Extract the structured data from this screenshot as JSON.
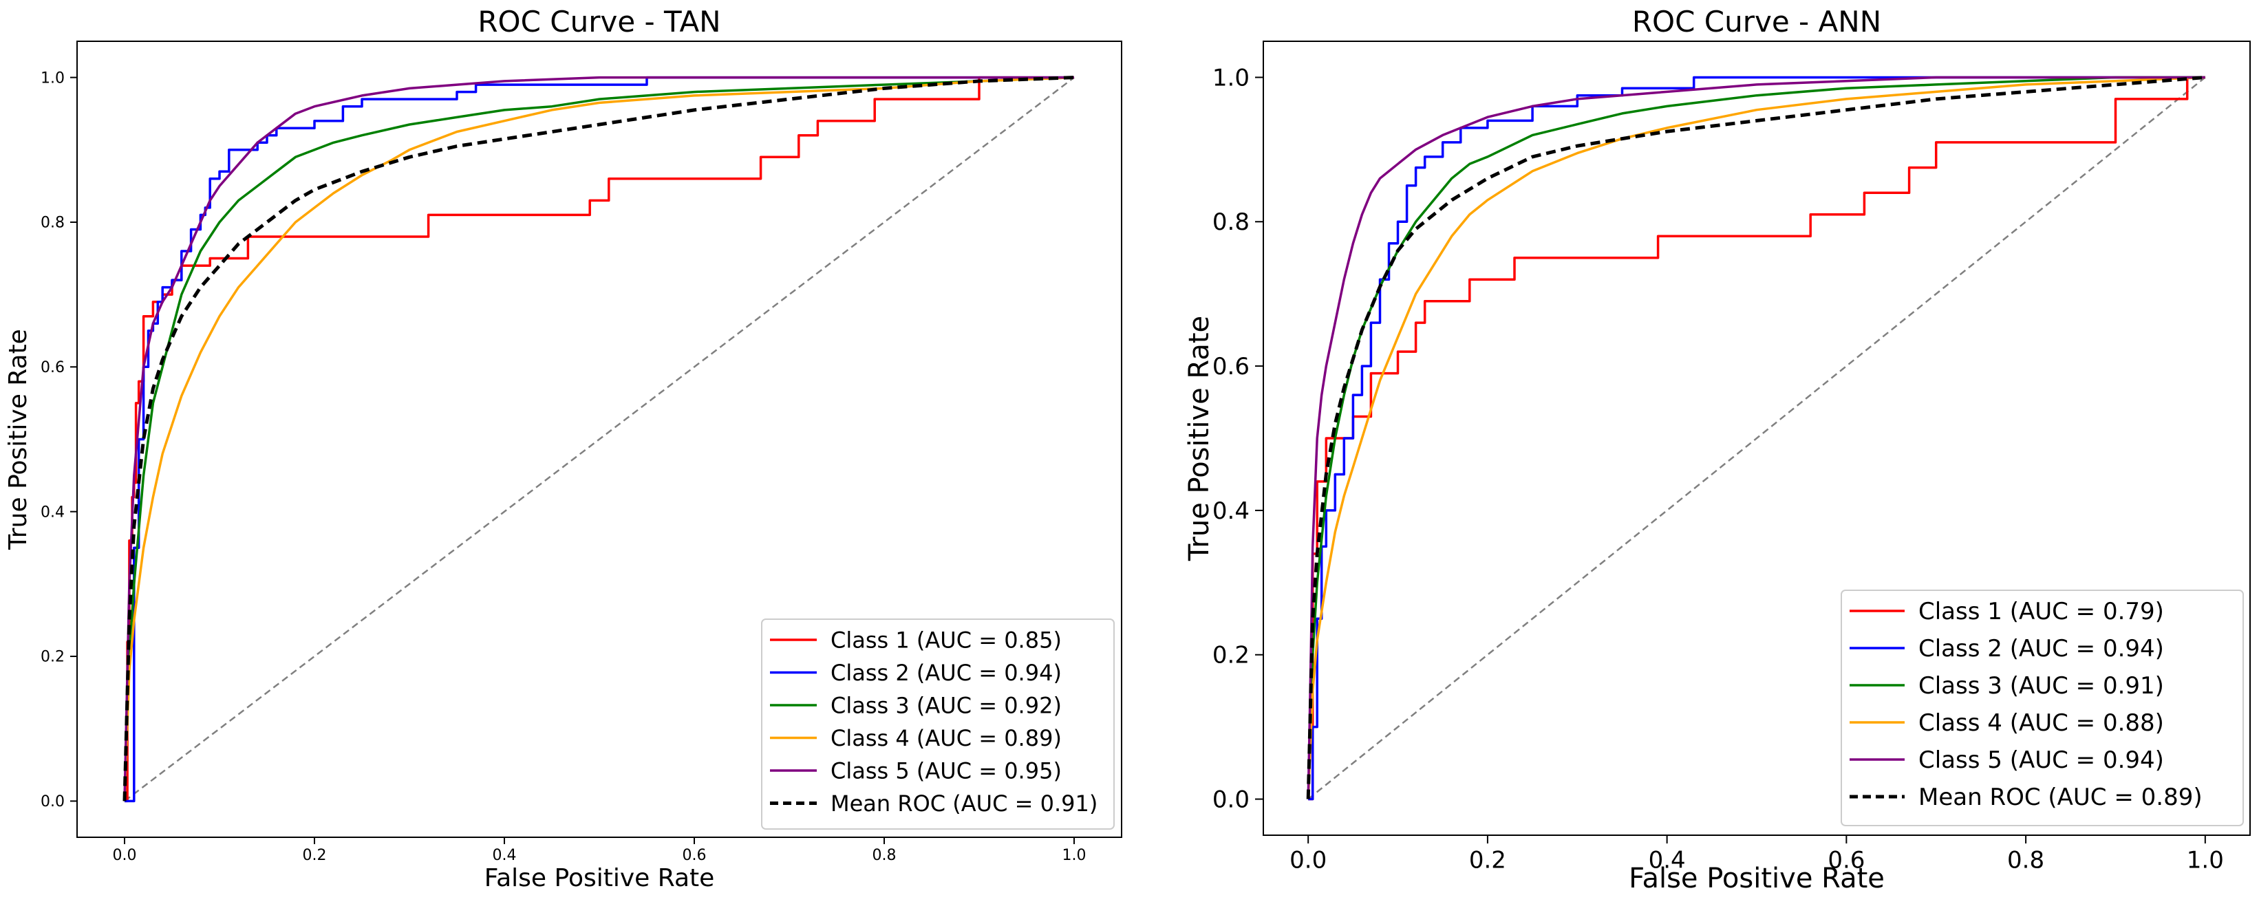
{
  "chart_data": [
    {
      "type": "line",
      "title": "ROC Curve - TAN",
      "xlabel": "False Positive Rate",
      "ylabel": "True Positive Rate",
      "xlim": [
        -0.05,
        1.05
      ],
      "ylim": [
        -0.05,
        1.05
      ],
      "xticks": [
        0.0,
        0.2,
        0.4,
        0.6,
        0.8,
        1.0
      ],
      "yticks": [
        0.0,
        0.2,
        0.4,
        0.6,
        0.8,
        1.0
      ],
      "tick_labels_x": [
        "0.0",
        "0.2",
        "0.4",
        "0.6",
        "0.8",
        "1.0"
      ],
      "tick_labels_y": [
        "0.0",
        "0.2",
        "0.4",
        "0.6",
        "0.8",
        "1.0"
      ],
      "legend_position": "lower-right",
      "diagonal": {
        "x": [
          0,
          1
        ],
        "y": [
          0,
          1
        ],
        "color": "#808080",
        "style": "dashed"
      },
      "series": [
        {
          "name": "Class 1 (AUC = 0.85)",
          "color": "#ff0000",
          "style": "step",
          "x": [
            0.0,
            0.003,
            0.005,
            0.008,
            0.01,
            0.012,
            0.015,
            0.02,
            0.03,
            0.04,
            0.05,
            0.06,
            0.07,
            0.09,
            0.11,
            0.13,
            0.15,
            0.2,
            0.25,
            0.32,
            0.4,
            0.48,
            0.49,
            0.51,
            0.6,
            0.67,
            0.7,
            0.71,
            0.73,
            0.79,
            0.8,
            0.9,
            1.0
          ],
          "y": [
            0.0,
            0.22,
            0.36,
            0.42,
            0.44,
            0.55,
            0.58,
            0.67,
            0.69,
            0.7,
            0.72,
            0.74,
            0.74,
            0.75,
            0.75,
            0.78,
            0.78,
            0.78,
            0.78,
            0.81,
            0.81,
            0.81,
            0.83,
            0.86,
            0.86,
            0.89,
            0.89,
            0.92,
            0.94,
            0.97,
            0.97,
            1.0,
            1.0
          ]
        },
        {
          "name": "Class 2 (AUC = 0.94)",
          "color": "#0000ff",
          "style": "step",
          "x": [
            0.0,
            0.01,
            0.015,
            0.02,
            0.025,
            0.03,
            0.035,
            0.04,
            0.05,
            0.06,
            0.07,
            0.08,
            0.085,
            0.09,
            0.1,
            0.11,
            0.12,
            0.14,
            0.15,
            0.16,
            0.18,
            0.2,
            0.23,
            0.25,
            0.3,
            0.35,
            0.37,
            0.4,
            0.55,
            1.0
          ],
          "y": [
            0.0,
            0.35,
            0.5,
            0.6,
            0.65,
            0.66,
            0.69,
            0.71,
            0.72,
            0.76,
            0.79,
            0.81,
            0.82,
            0.86,
            0.87,
            0.9,
            0.9,
            0.91,
            0.92,
            0.93,
            0.93,
            0.94,
            0.96,
            0.97,
            0.97,
            0.98,
            0.99,
            0.99,
            1.0,
            1.0
          ]
        },
        {
          "name": "Class 3 (AUC = 0.92)",
          "color": "#008000",
          "style": "line",
          "x": [
            0.0,
            0.005,
            0.01,
            0.02,
            0.03,
            0.04,
            0.05,
            0.06,
            0.07,
            0.08,
            0.09,
            0.1,
            0.12,
            0.14,
            0.16,
            0.18,
            0.2,
            0.22,
            0.25,
            0.3,
            0.35,
            0.4,
            0.45,
            0.5,
            0.55,
            0.6,
            0.7,
            0.8,
            0.9,
            1.0
          ],
          "y": [
            0.0,
            0.2,
            0.3,
            0.45,
            0.55,
            0.6,
            0.65,
            0.7,
            0.73,
            0.76,
            0.78,
            0.8,
            0.83,
            0.85,
            0.87,
            0.89,
            0.9,
            0.91,
            0.92,
            0.935,
            0.945,
            0.955,
            0.96,
            0.97,
            0.975,
            0.98,
            0.985,
            0.99,
            0.995,
            1.0
          ]
        },
        {
          "name": "Class 4 (AUC = 0.89)",
          "color": "#ffa500",
          "style": "line",
          "x": [
            0.0,
            0.005,
            0.01,
            0.02,
            0.03,
            0.04,
            0.05,
            0.06,
            0.08,
            0.1,
            0.12,
            0.14,
            0.16,
            0.18,
            0.2,
            0.22,
            0.25,
            0.28,
            0.3,
            0.35,
            0.4,
            0.45,
            0.5,
            0.55,
            0.6,
            0.7,
            0.8,
            0.9,
            1.0
          ],
          "y": [
            0.0,
            0.18,
            0.25,
            0.35,
            0.42,
            0.48,
            0.52,
            0.56,
            0.62,
            0.67,
            0.71,
            0.74,
            0.77,
            0.8,
            0.82,
            0.84,
            0.865,
            0.885,
            0.9,
            0.925,
            0.94,
            0.955,
            0.965,
            0.97,
            0.975,
            0.98,
            0.985,
            0.995,
            1.0
          ]
        },
        {
          "name": "Class 5 (AUC = 0.95)",
          "color": "#800080",
          "style": "line",
          "x": [
            0.0,
            0.005,
            0.01,
            0.02,
            0.03,
            0.04,
            0.05,
            0.06,
            0.07,
            0.08,
            0.09,
            0.1,
            0.12,
            0.14,
            0.16,
            0.18,
            0.2,
            0.25,
            0.3,
            0.35,
            0.4,
            0.5,
            0.6,
            0.7,
            0.8,
            0.9,
            1.0
          ],
          "y": [
            0.0,
            0.3,
            0.45,
            0.6,
            0.66,
            0.69,
            0.71,
            0.74,
            0.77,
            0.8,
            0.83,
            0.85,
            0.88,
            0.91,
            0.93,
            0.95,
            0.96,
            0.975,
            0.985,
            0.99,
            0.995,
            1.0,
            1.0,
            1.0,
            1.0,
            1.0,
            1.0
          ]
        },
        {
          "name": "Mean ROC (AUC = 0.91)",
          "color": "#000000",
          "style": "dashed",
          "x": [
            0.0,
            0.005,
            0.01,
            0.02,
            0.03,
            0.04,
            0.05,
            0.06,
            0.08,
            0.1,
            0.12,
            0.14,
            0.16,
            0.18,
            0.2,
            0.25,
            0.3,
            0.35,
            0.4,
            0.45,
            0.5,
            0.6,
            0.7,
            0.8,
            0.9,
            1.0
          ],
          "y": [
            0.0,
            0.25,
            0.38,
            0.5,
            0.57,
            0.61,
            0.64,
            0.67,
            0.71,
            0.74,
            0.77,
            0.79,
            0.81,
            0.83,
            0.845,
            0.87,
            0.89,
            0.905,
            0.915,
            0.925,
            0.935,
            0.955,
            0.97,
            0.985,
            0.995,
            1.0
          ]
        }
      ]
    },
    {
      "type": "line",
      "title": "ROC Curve - ANN",
      "xlabel": "False Positive Rate",
      "ylabel": "True Positive Rate",
      "xlim": [
        -0.05,
        1.05
      ],
      "ylim": [
        -0.05,
        1.05
      ],
      "xticks": [
        0.0,
        0.2,
        0.4,
        0.6,
        0.8,
        1.0
      ],
      "yticks": [
        0.0,
        0.2,
        0.4,
        0.6,
        0.8,
        1.0
      ],
      "tick_labels_x": [
        "0.0",
        "0.2",
        "0.4",
        "0.6",
        "0.8",
        "1.0"
      ],
      "tick_labels_y": [
        "0.0",
        "0.2",
        "0.4",
        "0.6",
        "0.8",
        "1.0"
      ],
      "legend_position": "lower-right",
      "diagonal": {
        "x": [
          0,
          1
        ],
        "y": [
          0,
          1
        ],
        "color": "#808080",
        "style": "dashed"
      },
      "series": [
        {
          "name": "Class 1 (AUC = 0.79)",
          "color": "#ff0000",
          "style": "step",
          "x": [
            0.0,
            0.005,
            0.01,
            0.02,
            0.03,
            0.05,
            0.07,
            0.08,
            0.1,
            0.12,
            0.13,
            0.15,
            0.18,
            0.2,
            0.23,
            0.3,
            0.39,
            0.5,
            0.56,
            0.62,
            0.67,
            0.69,
            0.7,
            0.8,
            0.89,
            0.9,
            0.98,
            1.0
          ],
          "y": [
            0.0,
            0.34,
            0.44,
            0.5,
            0.5,
            0.53,
            0.59,
            0.59,
            0.62,
            0.66,
            0.69,
            0.69,
            0.72,
            0.72,
            0.75,
            0.75,
            0.78,
            0.78,
            0.81,
            0.84,
            0.875,
            0.875,
            0.91,
            0.91,
            0.91,
            0.97,
            1.0,
            1.0
          ]
        },
        {
          "name": "Class 2 (AUC = 0.94)",
          "color": "#0000ff",
          "style": "step",
          "x": [
            0.0,
            0.005,
            0.01,
            0.015,
            0.02,
            0.03,
            0.04,
            0.05,
            0.06,
            0.07,
            0.08,
            0.09,
            0.1,
            0.11,
            0.12,
            0.13,
            0.15,
            0.17,
            0.2,
            0.25,
            0.3,
            0.35,
            0.43,
            0.6,
            1.0
          ],
          "y": [
            0.0,
            0.1,
            0.25,
            0.35,
            0.4,
            0.45,
            0.5,
            0.56,
            0.6,
            0.66,
            0.72,
            0.77,
            0.8,
            0.85,
            0.875,
            0.89,
            0.91,
            0.93,
            0.94,
            0.96,
            0.975,
            0.985,
            1.0,
            1.0,
            1.0
          ]
        },
        {
          "name": "Class 3 (AUC = 0.91)",
          "color": "#008000",
          "style": "line",
          "x": [
            0.0,
            0.005,
            0.01,
            0.02,
            0.03,
            0.04,
            0.05,
            0.06,
            0.08,
            0.1,
            0.12,
            0.14,
            0.16,
            0.18,
            0.2,
            0.25,
            0.3,
            0.35,
            0.4,
            0.5,
            0.6,
            0.7,
            0.8,
            0.9,
            1.0
          ],
          "y": [
            0.0,
            0.2,
            0.3,
            0.42,
            0.5,
            0.56,
            0.61,
            0.65,
            0.71,
            0.76,
            0.8,
            0.83,
            0.86,
            0.88,
            0.89,
            0.92,
            0.935,
            0.95,
            0.96,
            0.975,
            0.985,
            0.99,
            0.995,
            1.0,
            1.0
          ]
        },
        {
          "name": "Class 4 (AUC = 0.88)",
          "color": "#ffa500",
          "style": "line",
          "x": [
            0.0,
            0.005,
            0.01,
            0.02,
            0.03,
            0.04,
            0.05,
            0.06,
            0.08,
            0.1,
            0.12,
            0.14,
            0.16,
            0.18,
            0.2,
            0.25,
            0.3,
            0.35,
            0.4,
            0.5,
            0.6,
            0.7,
            0.8,
            0.9,
            1.0
          ],
          "y": [
            0.0,
            0.15,
            0.22,
            0.3,
            0.37,
            0.42,
            0.46,
            0.5,
            0.58,
            0.64,
            0.7,
            0.74,
            0.78,
            0.81,
            0.83,
            0.87,
            0.895,
            0.915,
            0.93,
            0.955,
            0.97,
            0.98,
            0.99,
            0.995,
            1.0
          ]
        },
        {
          "name": "Class 5 (AUC = 0.94)",
          "color": "#800080",
          "style": "line",
          "x": [
            0.0,
            0.003,
            0.005,
            0.01,
            0.015,
            0.02,
            0.03,
            0.04,
            0.05,
            0.06,
            0.07,
            0.08,
            0.1,
            0.12,
            0.15,
            0.2,
            0.25,
            0.3,
            0.4,
            0.5,
            0.6,
            0.7,
            0.8,
            0.9,
            1.0
          ],
          "y": [
            0.0,
            0.2,
            0.35,
            0.5,
            0.56,
            0.6,
            0.66,
            0.72,
            0.77,
            0.81,
            0.84,
            0.86,
            0.88,
            0.9,
            0.92,
            0.945,
            0.96,
            0.97,
            0.98,
            0.99,
            0.995,
            1.0,
            1.0,
            1.0,
            1.0
          ]
        },
        {
          "name": "Mean ROC (AUC = 0.89)",
          "color": "#000000",
          "style": "dashed",
          "x": [
            0.0,
            0.005,
            0.01,
            0.02,
            0.03,
            0.04,
            0.05,
            0.06,
            0.08,
            0.1,
            0.12,
            0.14,
            0.16,
            0.2,
            0.25,
            0.3,
            0.35,
            0.4,
            0.5,
            0.6,
            0.7,
            0.8,
            0.9,
            1.0
          ],
          "y": [
            0.0,
            0.25,
            0.34,
            0.45,
            0.52,
            0.57,
            0.61,
            0.65,
            0.71,
            0.76,
            0.79,
            0.81,
            0.83,
            0.86,
            0.89,
            0.905,
            0.915,
            0.925,
            0.94,
            0.955,
            0.97,
            0.98,
            0.99,
            1.0
          ]
        }
      ]
    }
  ]
}
